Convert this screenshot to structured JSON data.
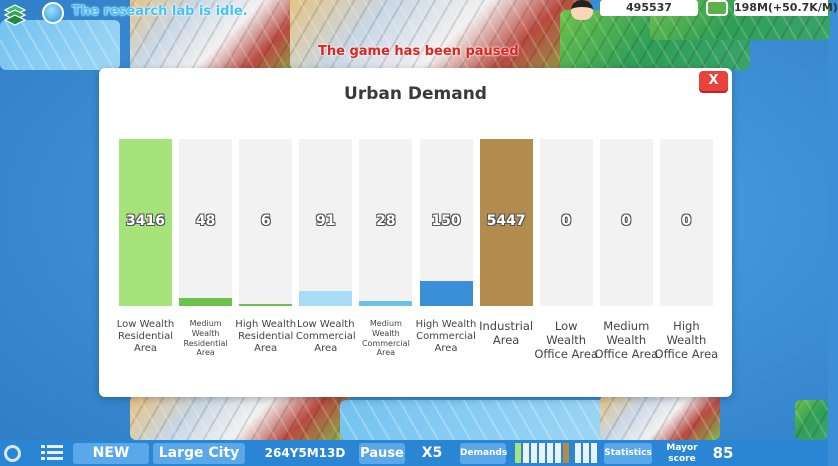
{
  "hud": {
    "research_message": "The research lab is idle.",
    "paused_message": "The game has been paused",
    "score": "495537",
    "money": "198M(+50.7K/M)"
  },
  "modal": {
    "title": "Urban Demand",
    "close_label": "X",
    "max_value": 5447,
    "bars": [
      {
        "value": "3416",
        "fraction": 1.0,
        "color": "#a6e37b",
        "label": "Low Wealth\nResidential\nArea",
        "size": "md"
      },
      {
        "value": "48",
        "fraction": 0.05,
        "color": "#6cc24a",
        "label": "Medium\nWealth\nResidential\nArea",
        "size": "sm"
      },
      {
        "value": "6",
        "fraction": 0.006,
        "color": "#6cc24a",
        "label": "High Wealth\nResidential\nArea",
        "size": "md"
      },
      {
        "value": "91",
        "fraction": 0.09,
        "color": "#a8dcf7",
        "label": "Low Wealth\nCommercial\nArea",
        "size": "md"
      },
      {
        "value": "28",
        "fraction": 0.028,
        "color": "#6cc1e6",
        "label": "Medium\nWealth\nCommercial\nArea",
        "size": "sm"
      },
      {
        "value": "150",
        "fraction": 0.15,
        "color": "#3a8fd9",
        "label": "High Wealth\nCommercial\nArea",
        "size": "md"
      },
      {
        "value": "5447",
        "fraction": 1.0,
        "color": "#b28c4e",
        "label": "Industrial\nArea",
        "size": "lg"
      },
      {
        "value": "0",
        "fraction": 0,
        "color": "#f2f2f2",
        "label": "Low\nWealth\nOffice Area",
        "size": "lg"
      },
      {
        "value": "0",
        "fraction": 0,
        "color": "#f2f2f2",
        "label": "Medium\nWealth\nOffice Area",
        "size": "lg"
      },
      {
        "value": "0",
        "fraction": 0,
        "color": "#f2f2f2",
        "label": "High\nWealth\nOffice Area",
        "size": "lg"
      }
    ]
  },
  "bottom_bar": {
    "new_label": "NEW",
    "city_name": "Large City",
    "date": "264Y5M13D",
    "pause_label": "Pause",
    "speed": "X5",
    "demands_label": "Demands",
    "statistics_label": "Statistics",
    "mayor_score_label": "Mayor\nscore",
    "mayor_score": "85"
  },
  "colors": {
    "accent_blue": "#2a86d4",
    "chip_blue": "#5aa8ea",
    "close_red": "#e8423a"
  },
  "icons": [
    "layers-icon",
    "globe-icon",
    "mayor-avatar-icon",
    "money-icon",
    "settings-icon",
    "list-icon",
    "chart-icon"
  ]
}
